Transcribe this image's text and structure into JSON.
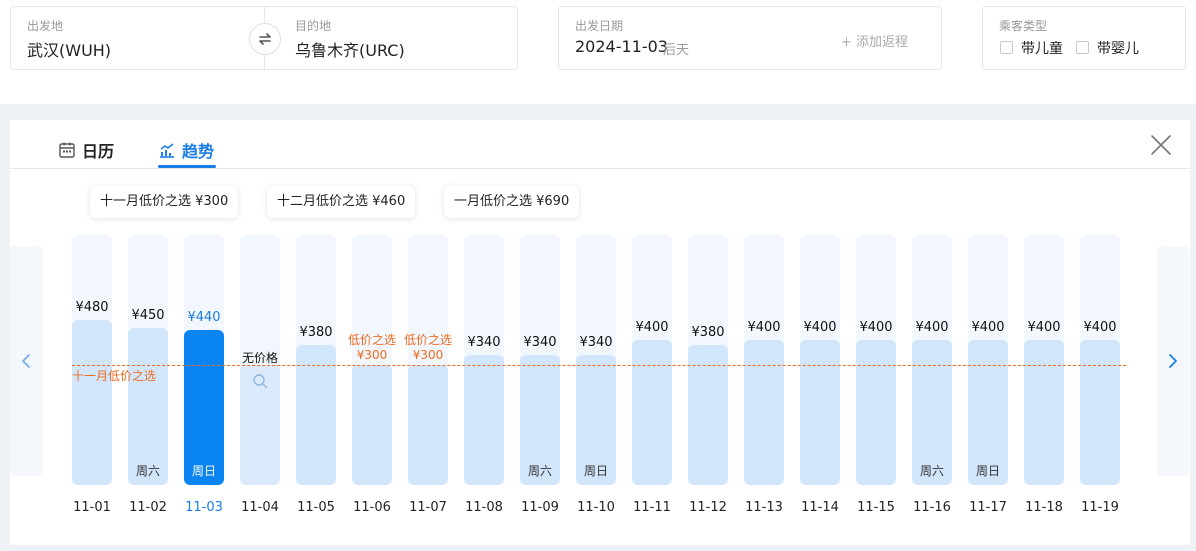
{
  "search": {
    "origin_label": "出发地",
    "origin_value": "武汉(WUH)",
    "destination_label": "目的地",
    "destination_value": "乌鲁木齐(URC)",
    "date_label": "出发日期",
    "date_value": "2024-11-03",
    "date_relative": "后天",
    "add_return": "+ 添加返程",
    "pax_label": "乘客类型",
    "pax_options": [
      "带儿童",
      "带婴儿"
    ]
  },
  "tabs": [
    {
      "label": "日历",
      "icon": "calendar-icon",
      "active": false
    },
    {
      "label": "趋势",
      "icon": "trend-chart-icon",
      "active": true
    }
  ],
  "month_chips": [
    "十一月低价之选 ¥300",
    "十二月低价之选 ¥460",
    "一月低价之选 ¥690"
  ],
  "low_price_line_label": "十一月低价之选",
  "low_price_tag": "低价之选",
  "no_price_text": "无价格",
  "colors": {
    "accent": "#1a7ee6",
    "low_price": "#ef6c1f",
    "bar": "#d2e6fb",
    "bar_selected": "#0a84f0"
  },
  "chart_data": {
    "type": "bar",
    "categories": [
      "11-01",
      "11-02",
      "11-03",
      "11-04",
      "11-05",
      "11-06",
      "11-07",
      "11-08",
      "11-09",
      "11-10",
      "11-11",
      "11-12",
      "11-13",
      "11-14",
      "11-15",
      "11-16",
      "11-17",
      "11-18",
      "11-19"
    ],
    "values": [
      480,
      450,
      440,
      null,
      380,
      300,
      300,
      340,
      340,
      340,
      400,
      380,
      400,
      400,
      400,
      400,
      400,
      400,
      400
    ],
    "price_labels": [
      "¥480",
      "¥450",
      "¥440",
      "",
      "¥380",
      "¥300",
      "¥300",
      "¥340",
      "¥340",
      "¥340",
      "¥400",
      "¥380",
      "¥400",
      "¥400",
      "¥400",
      "¥400",
      "¥400",
      "¥400",
      "¥400"
    ],
    "weekday_labels": [
      "",
      "周六",
      "周日",
      "",
      "",
      "",
      "",
      "",
      "周六",
      "周日",
      "",
      "",
      "",
      "",
      "",
      "周六",
      "周日",
      "",
      ""
    ],
    "selected_index": 2,
    "no_price_index": 3,
    "low_price_indices": [
      5,
      6
    ],
    "reference_value": 300
  }
}
